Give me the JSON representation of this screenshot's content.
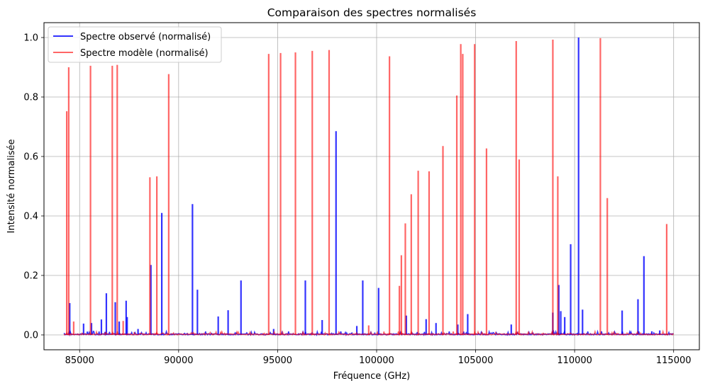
{
  "chart_data": {
    "type": "line",
    "title": "Comparaison des spectres normalisés",
    "xlabel": "Fréquence (GHz)",
    "ylabel": "Intensité normalisée",
    "xlim": [
      83200,
      116300
    ],
    "ylim": [
      -0.05,
      1.05
    ],
    "xticks": [
      85000,
      90000,
      95000,
      100000,
      105000,
      110000,
      115000
    ],
    "yticks": [
      0.0,
      0.2,
      0.4,
      0.6,
      0.8,
      1.0
    ],
    "xtick_labels": [
      "85000",
      "90000",
      "95000",
      "100000",
      "105000",
      "110000",
      "115000"
    ],
    "ytick_labels": [
      "0.0",
      "0.2",
      "0.4",
      "0.6",
      "0.8",
      "1.0"
    ],
    "grid": true,
    "legend_position": "top-left",
    "x_range": [
      84200,
      115000
    ],
    "series": [
      {
        "name": "Spectre observé (normalisé)",
        "color": "#0000ff",
        "alpha": 0.8,
        "peaks": [
          [
            84500,
            0.107
          ],
          [
            85200,
            0.038
          ],
          [
            85600,
            0.04
          ],
          [
            86100,
            0.052
          ],
          [
            86350,
            0.14
          ],
          [
            86800,
            0.11
          ],
          [
            87000,
            0.045
          ],
          [
            87350,
            0.115
          ],
          [
            87400,
            0.06
          ],
          [
            87950,
            0.02
          ],
          [
            88600,
            0.235
          ],
          [
            89150,
            0.41
          ],
          [
            90700,
            0.44
          ],
          [
            90950,
            0.152
          ],
          [
            92000,
            0.062
          ],
          [
            92500,
            0.083
          ],
          [
            93150,
            0.183
          ],
          [
            94800,
            0.02
          ],
          [
            96400,
            0.183
          ],
          [
            97250,
            0.05
          ],
          [
            97950,
            0.685
          ],
          [
            99000,
            0.03
          ],
          [
            99300,
            0.183
          ],
          [
            100100,
            0.158
          ],
          [
            101500,
            0.065
          ],
          [
            102500,
            0.053
          ],
          [
            103000,
            0.04
          ],
          [
            104100,
            0.035
          ],
          [
            104600,
            0.07
          ],
          [
            106800,
            0.035
          ],
          [
            108900,
            0.075
          ],
          [
            109200,
            0.168
          ],
          [
            109300,
            0.08
          ],
          [
            109500,
            0.06
          ],
          [
            109800,
            0.305
          ],
          [
            110200,
            1.0
          ],
          [
            110400,
            0.085
          ],
          [
            112400,
            0.082
          ],
          [
            113200,
            0.12
          ],
          [
            113500,
            0.265
          ],
          [
            113900,
            0.012
          ],
          [
            114300,
            0.015
          ]
        ]
      },
      {
        "name": "Spectre modèle (normalisé)",
        "color": "#ff0000",
        "alpha": 0.6,
        "peaks": [
          [
            84350,
            0.752
          ],
          [
            84450,
            0.9
          ],
          [
            84700,
            0.045
          ],
          [
            85550,
            0.905
          ],
          [
            86650,
            0.905
          ],
          [
            86900,
            0.908
          ],
          [
            87200,
            0.047
          ],
          [
            88550,
            0.53
          ],
          [
            88900,
            0.533
          ],
          [
            89500,
            0.877
          ],
          [
            94550,
            0.945
          ],
          [
            95150,
            0.948
          ],
          [
            95900,
            0.95
          ],
          [
            96750,
            0.955
          ],
          [
            97600,
            0.958
          ],
          [
            99600,
            0.032
          ],
          [
            100650,
            0.937
          ],
          [
            101150,
            0.165
          ],
          [
            101250,
            0.268
          ],
          [
            101450,
            0.375
          ],
          [
            101750,
            0.473
          ],
          [
            102100,
            0.552
          ],
          [
            102650,
            0.55
          ],
          [
            103350,
            0.635
          ],
          [
            104050,
            0.805
          ],
          [
            104250,
            0.978
          ],
          [
            104350,
            0.945
          ],
          [
            104950,
            0.978
          ],
          [
            105550,
            0.627
          ],
          [
            107050,
            0.988
          ],
          [
            107200,
            0.59
          ],
          [
            108900,
            0.993
          ],
          [
            109150,
            0.533
          ],
          [
            111300,
            0.998
          ],
          [
            111650,
            0.46
          ],
          [
            114650,
            0.373
          ]
        ]
      }
    ]
  }
}
